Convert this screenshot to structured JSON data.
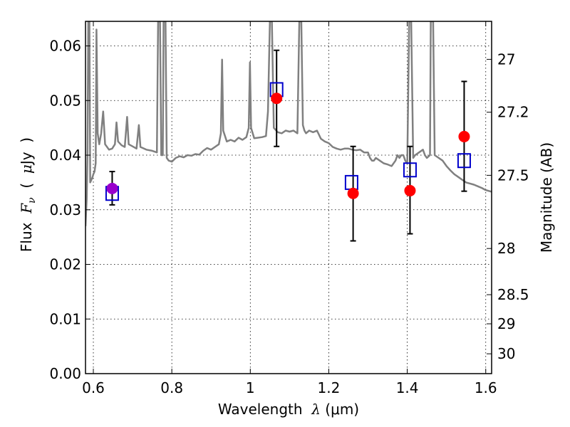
{
  "chart_data": {
    "type": "scatter",
    "xlabel": {
      "prefix": "Wavelength  ",
      "symbol": "λ",
      "unit": " (μm)"
    },
    "ylabel": {
      "prefix": "Flux  ",
      "symbol": "F",
      "subscript": "ν",
      "paren_open": "  (  ",
      "unit_symbol": "μ",
      "unit": "Jy  )"
    },
    "y2label": "Magnitude (AB)",
    "xlim": [
      0.58,
      1.615
    ],
    "ylim": [
      0.0,
      0.0645
    ],
    "grid": true,
    "x_ticks": [
      {
        "value": 0.6,
        "label": "0.6"
      },
      {
        "value": 0.8,
        "label": "0.8"
      },
      {
        "value": 1.0,
        "label": "1"
      },
      {
        "value": 1.2,
        "label": "1.2"
      },
      {
        "value": 1.4,
        "label": "1.4"
      },
      {
        "value": 1.6,
        "label": "1.6"
      }
    ],
    "y_ticks": [
      {
        "value": 0.0,
        "label": "0.00"
      },
      {
        "value": 0.01,
        "label": "0.01"
      },
      {
        "value": 0.02,
        "label": "0.02"
      },
      {
        "value": 0.03,
        "label": "0.03"
      },
      {
        "value": 0.04,
        "label": "0.04"
      },
      {
        "value": 0.05,
        "label": "0.05"
      },
      {
        "value": 0.06,
        "label": "0.06"
      }
    ],
    "y2_ticks": [
      {
        "mag": 27.0,
        "label": "27"
      },
      {
        "mag": 27.2,
        "label": "27.2"
      },
      {
        "mag": 27.5,
        "label": "27.5"
      },
      {
        "mag": 28.0,
        "label": "28"
      },
      {
        "mag": 28.5,
        "label": "28.5"
      },
      {
        "mag": 29.0,
        "label": "29"
      },
      {
        "mag": 30.0,
        "label": "30"
      }
    ],
    "observed": [
      {
        "x": 0.648,
        "y": 0.0339,
        "err_low": 0.0309,
        "err_high": 0.037,
        "color": "#9900cc"
      },
      {
        "x": 1.067,
        "y": 0.0504,
        "err_low": 0.0416,
        "err_high": 0.0592,
        "color": "#ff0000"
      },
      {
        "x": 1.262,
        "y": 0.033,
        "err_low": 0.0243,
        "err_high": 0.0416,
        "color": "#ff0000"
      },
      {
        "x": 1.407,
        "y": 0.0335,
        "err_low": 0.0256,
        "err_high": 0.0416,
        "color": "#ff0000"
      },
      {
        "x": 1.545,
        "y": 0.0434,
        "err_low": 0.0334,
        "err_high": 0.0535,
        "color": "#ff0000"
      }
    ],
    "model_photometry": [
      {
        "x": 0.648,
        "y": 0.033
      },
      {
        "x": 1.067,
        "y": 0.052
      },
      {
        "x": 1.258,
        "y": 0.035
      },
      {
        "x": 1.407,
        "y": 0.0373
      },
      {
        "x": 1.545,
        "y": 0.039
      }
    ],
    "spectrum": {
      "color": "#808080",
      "points": [
        [
          0.58,
          0.027
        ],
        [
          0.583,
          0.032
        ],
        [
          0.585,
          0.04
        ],
        [
          0.587,
          0.0645
        ],
        [
          0.59,
          0.0645
        ],
        [
          0.592,
          0.035
        ],
        [
          0.595,
          0.0355
        ],
        [
          0.598,
          0.036
        ],
        [
          0.6,
          0.0365
        ],
        [
          0.603,
          0.037
        ],
        [
          0.606,
          0.0385
        ],
        [
          0.608,
          0.063
        ],
        [
          0.611,
          0.044
        ],
        [
          0.615,
          0.042
        ],
        [
          0.62,
          0.044
        ],
        [
          0.625,
          0.048
        ],
        [
          0.63,
          0.042
        ],
        [
          0.64,
          0.041
        ],
        [
          0.648,
          0.0412
        ],
        [
          0.655,
          0.042
        ],
        [
          0.659,
          0.046
        ],
        [
          0.663,
          0.0425
        ],
        [
          0.672,
          0.0418
        ],
        [
          0.68,
          0.0415
        ],
        [
          0.686,
          0.047
        ],
        [
          0.69,
          0.042
        ],
        [
          0.7,
          0.0416
        ],
        [
          0.71,
          0.0412
        ],
        [
          0.716,
          0.0455
        ],
        [
          0.72,
          0.0415
        ],
        [
          0.735,
          0.041
        ],
        [
          0.75,
          0.0408
        ],
        [
          0.762,
          0.0405
        ],
        [
          0.765,
          0.0645
        ],
        [
          0.77,
          0.0645
        ],
        [
          0.773,
          0.04
        ],
        [
          0.777,
          0.04
        ],
        [
          0.779,
          0.0645
        ],
        [
          0.784,
          0.0645
        ],
        [
          0.787,
          0.0395
        ],
        [
          0.792,
          0.039
        ],
        [
          0.8,
          0.0388
        ],
        [
          0.81,
          0.0395
        ],
        [
          0.82,
          0.0398
        ],
        [
          0.83,
          0.0396
        ],
        [
          0.84,
          0.04
        ],
        [
          0.85,
          0.0399
        ],
        [
          0.86,
          0.0402
        ],
        [
          0.87,
          0.0401
        ],
        [
          0.88,
          0.0408
        ],
        [
          0.89,
          0.0413
        ],
        [
          0.9,
          0.041
        ],
        [
          0.91,
          0.0415
        ],
        [
          0.92,
          0.042
        ],
        [
          0.925,
          0.044
        ],
        [
          0.928,
          0.0575
        ],
        [
          0.931,
          0.0445
        ],
        [
          0.94,
          0.0425
        ],
        [
          0.95,
          0.0428
        ],
        [
          0.96,
          0.0425
        ],
        [
          0.97,
          0.0432
        ],
        [
          0.98,
          0.0428
        ],
        [
          0.99,
          0.0433
        ],
        [
          0.996,
          0.045
        ],
        [
          0.999,
          0.057
        ],
        [
          1.002,
          0.045
        ],
        [
          1.01,
          0.0431
        ],
        [
          1.02,
          0.0432
        ],
        [
          1.03,
          0.0433
        ],
        [
          1.04,
          0.0435
        ],
        [
          1.045,
          0.048
        ],
        [
          1.05,
          0.0645
        ],
        [
          1.055,
          0.0645
        ],
        [
          1.06,
          0.045
        ],
        [
          1.07,
          0.0442
        ],
        [
          1.08,
          0.044
        ],
        [
          1.09,
          0.0445
        ],
        [
          1.1,
          0.0443
        ],
        [
          1.11,
          0.0445
        ],
        [
          1.12,
          0.044
        ],
        [
          1.125,
          0.0645
        ],
        [
          1.13,
          0.0645
        ],
        [
          1.134,
          0.0455
        ],
        [
          1.138,
          0.0445
        ],
        [
          1.142,
          0.044
        ],
        [
          1.15,
          0.0445
        ],
        [
          1.16,
          0.0442
        ],
        [
          1.17,
          0.0445
        ],
        [
          1.18,
          0.043
        ],
        [
          1.19,
          0.0425
        ],
        [
          1.2,
          0.0422
        ],
        [
          1.21,
          0.0415
        ],
        [
          1.22,
          0.0412
        ],
        [
          1.23,
          0.041
        ],
        [
          1.24,
          0.0412
        ],
        [
          1.25,
          0.0412
        ],
        [
          1.26,
          0.041
        ],
        [
          1.27,
          0.0409
        ],
        [
          1.28,
          0.041
        ],
        [
          1.29,
          0.0405
        ],
        [
          1.3,
          0.0405
        ],
        [
          1.305,
          0.0395
        ],
        [
          1.31,
          0.039
        ],
        [
          1.315,
          0.039
        ],
        [
          1.32,
          0.0395
        ],
        [
          1.33,
          0.039
        ],
        [
          1.34,
          0.0385
        ],
        [
          1.35,
          0.0383
        ],
        [
          1.36,
          0.038
        ],
        [
          1.37,
          0.039
        ],
        [
          1.375,
          0.04
        ],
        [
          1.38,
          0.0395
        ],
        [
          1.385,
          0.04
        ],
        [
          1.39,
          0.04
        ],
        [
          1.395,
          0.039
        ],
        [
          1.4,
          0.0385
        ],
        [
          1.405,
          0.0645
        ],
        [
          1.41,
          0.0645
        ],
        [
          1.415,
          0.0395
        ],
        [
          1.42,
          0.04
        ],
        [
          1.43,
          0.0405
        ],
        [
          1.44,
          0.041
        ],
        [
          1.445,
          0.04
        ],
        [
          1.45,
          0.0395
        ],
        [
          1.458,
          0.04
        ],
        [
          1.46,
          0.0645
        ],
        [
          1.466,
          0.0645
        ],
        [
          1.47,
          0.04
        ],
        [
          1.48,
          0.0395
        ],
        [
          1.49,
          0.039
        ],
        [
          1.5,
          0.038
        ],
        [
          1.51,
          0.0372
        ],
        [
          1.52,
          0.0365
        ],
        [
          1.53,
          0.036
        ],
        [
          1.54,
          0.0355
        ],
        [
          1.55,
          0.035
        ],
        [
          1.56,
          0.0348
        ],
        [
          1.57,
          0.0346
        ],
        [
          1.58,
          0.0343
        ],
        [
          1.59,
          0.034
        ],
        [
          1.6,
          0.0336
        ],
        [
          1.615,
          0.0333
        ]
      ]
    }
  }
}
